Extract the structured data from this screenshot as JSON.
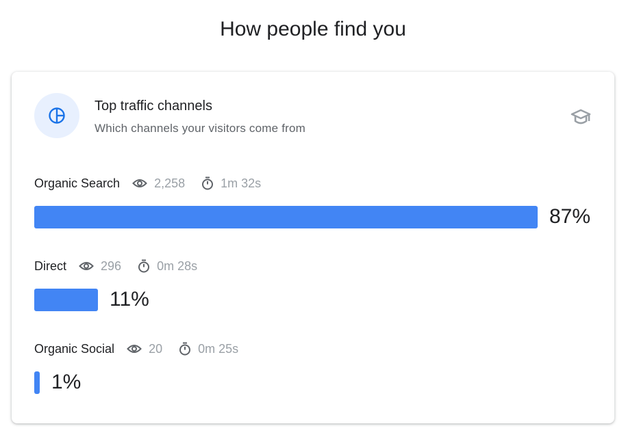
{
  "page_title": "How people find you",
  "card": {
    "icon": "pie-chart-icon",
    "title": "Top traffic channels",
    "subtitle": "Which channels your visitors come from",
    "learn_icon": "graduation-cap-icon",
    "accent": "#4285f4"
  },
  "channels": [
    {
      "name": "Organic Search",
      "views": "2,258",
      "duration": "1m 32s",
      "percent_label": "87%",
      "percent": 87
    },
    {
      "name": "Direct",
      "views": "296",
      "duration": "0m 28s",
      "percent_label": "11%",
      "percent": 11
    },
    {
      "name": "Organic Social",
      "views": "20",
      "duration": "0m 25s",
      "percent_label": "1%",
      "percent": 1
    }
  ]
}
